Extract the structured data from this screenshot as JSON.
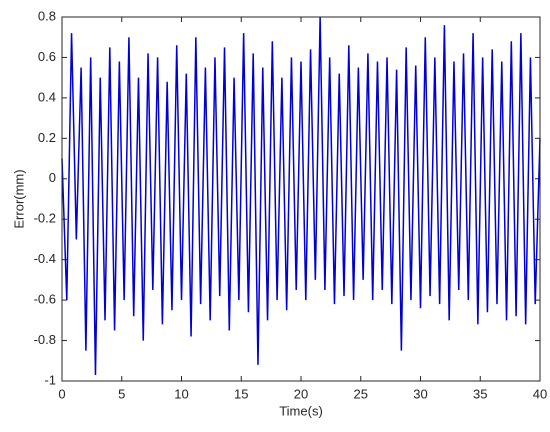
{
  "chart_data": {
    "type": "line",
    "xlabel": "Time(s)",
    "ylabel": "Error(mm)",
    "x": [
      0,
      0.4,
      0.8,
      1.2,
      1.6,
      2,
      2.4,
      2.8,
      3.2,
      3.6,
      4,
      4.4,
      4.8,
      5.2,
      5.6,
      6,
      6.4,
      6.8,
      7.2,
      7.6,
      8,
      8.4,
      8.8,
      9.2,
      9.6,
      10,
      10.4,
      10.8,
      11.2,
      11.6,
      12,
      12.4,
      12.8,
      13.2,
      13.6,
      14,
      14.4,
      14.8,
      15.2,
      15.6,
      16,
      16.4,
      16.8,
      17.2,
      17.6,
      18,
      18.4,
      18.8,
      19.2,
      19.6,
      20,
      20.4,
      20.8,
      21.2,
      21.6,
      22,
      22.4,
      22.8,
      23.2,
      23.6,
      24,
      24.4,
      24.8,
      25.2,
      25.6,
      26,
      26.4,
      26.8,
      27.2,
      27.6,
      28,
      28.4,
      28.8,
      29.2,
      29.6,
      30,
      30.4,
      30.8,
      31.2,
      31.6,
      32,
      32.4,
      32.8,
      33.2,
      33.6,
      34,
      34.4,
      34.8,
      35.2,
      35.6,
      36,
      36.4,
      36.8,
      37.2,
      37.6,
      38,
      38.4,
      38.8,
      39.2,
      39.6,
      40
    ],
    "values": [
      0.1,
      -0.6,
      0.72,
      -0.3,
      0.55,
      -0.85,
      0.6,
      -0.97,
      0.5,
      -0.7,
      0.65,
      -0.75,
      0.58,
      -0.6,
      0.7,
      -0.68,
      0.5,
      -0.8,
      0.62,
      -0.55,
      0.6,
      -0.72,
      0.48,
      -0.65,
      0.66,
      -0.6,
      0.52,
      -0.78,
      0.7,
      -0.62,
      0.55,
      -0.7,
      0.6,
      -0.58,
      0.65,
      -0.75,
      0.5,
      -0.6,
      0.72,
      -0.66,
      0.62,
      -0.92,
      0.55,
      -0.7,
      0.68,
      -0.6,
      0.5,
      -0.65,
      0.6,
      -0.55,
      0.58,
      -0.6,
      0.64,
      -0.5,
      0.8,
      -0.55,
      0.6,
      -0.62,
      0.52,
      -0.58,
      0.66,
      -0.6,
      0.55,
      -0.5,
      0.62,
      -0.6,
      0.58,
      -0.55,
      0.6,
      -0.62,
      0.54,
      -0.85,
      0.65,
      -0.6,
      0.56,
      -0.64,
      0.7,
      -0.58,
      0.6,
      -0.62,
      0.76,
      -0.7,
      0.58,
      -0.55,
      0.62,
      -0.6,
      0.72,
      -0.72,
      0.6,
      -0.66,
      0.64,
      -0.62,
      0.58,
      -0.7,
      0.68,
      -0.68,
      0.72,
      -0.72,
      0.6,
      -0.62,
      0.2
    ],
    "color": "#0000d8",
    "xlim": [
      0,
      40
    ],
    "xticks": [
      0,
      5,
      10,
      15,
      20,
      25,
      30,
      35,
      40
    ],
    "ylim": [
      -1,
      0.8
    ],
    "yticks": [
      -1,
      -0.8,
      -0.6,
      -0.4,
      -0.2,
      0,
      0.2,
      0.4,
      0.6,
      0.8
    ]
  }
}
